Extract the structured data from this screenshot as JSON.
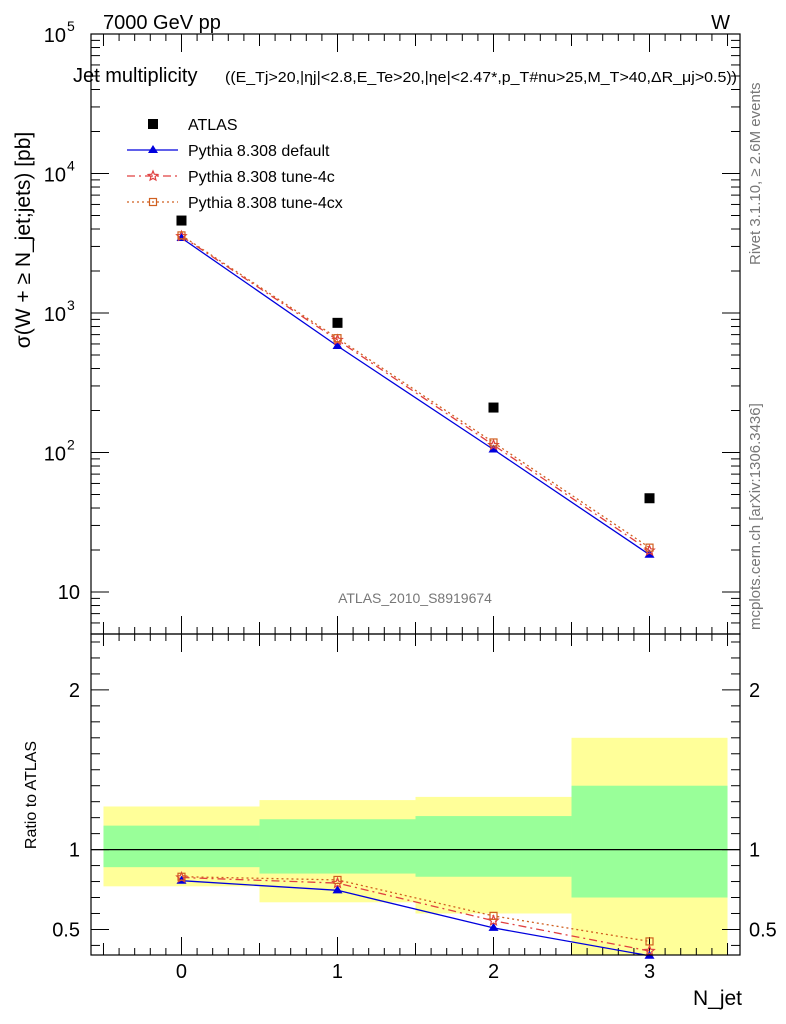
{
  "header": {
    "energy_label": "7000 GeV pp",
    "process_label": "W"
  },
  "side_labels": {
    "rivet": "Rivet 3.1.10, ≥ 2.6M events",
    "mcplots": "mcplots.cern.ch [arXiv:1306.3436]"
  },
  "watermark": "ATLAS_2010_S8919674",
  "colors": {
    "atlas": "#000000",
    "default": "#0000dd",
    "tune4c": "#e04040",
    "tune4cx": "#d06020",
    "band_outer": "#ffff99",
    "band_inner": "#99ff99"
  },
  "chart_data": [
    {
      "type": "scatter",
      "panel": "main",
      "title": "Jet multiplicity ((E_Tj>20,|η_j|<2.8,E_Te>20,|η_e|<2.47*,p_T^#nu>25,M_T>40,ΔR_μj>0.5))",
      "title_main": "Jet multiplicity",
      "title_cuts": "((E_Tj>20,|ηj|<2.8,E_Te>20,|ηe|<2.47*,p_T#nu>25,M_T>40,ΔR_μj>0.5))",
      "ylabel": "σ(W + ≥ N_jet;jets) [pb]",
      "y_scale": "log",
      "ylim": [
        5,
        100000
      ],
      "xlim": [
        -0.58,
        3.58
      ],
      "y_ticks": [
        "10",
        "10^2",
        "10^3",
        "10^4",
        "10^5"
      ],
      "legend_position": "top-left",
      "x": [
        0,
        1,
        2,
        3
      ],
      "series": [
        {
          "name": "ATLAS",
          "marker": "square",
          "values": [
            4600,
            850,
            210,
            47
          ]
        },
        {
          "name": "Pythia 8.308 default",
          "marker": "triangle",
          "line": "solid",
          "values": [
            3450,
            580,
            105,
            18.5
          ]
        },
        {
          "name": "Pythia 8.308 tune-4c",
          "marker": "star",
          "line": "dashdot",
          "values": [
            3550,
            640,
            113,
            19.8
          ]
        },
        {
          "name": "Pythia 8.308 tune-4cx",
          "marker": "open-square",
          "line": "dotted",
          "values": [
            3600,
            660,
            118,
            20.8
          ]
        }
      ]
    },
    {
      "type": "line",
      "panel": "ratio",
      "ylabel": "Ratio to ATLAS",
      "xlabel": "N_jet",
      "ylim": [
        0.34,
        2.35
      ],
      "xlim": [
        -0.58,
        3.58
      ],
      "x_ticks": [
        "0",
        "1",
        "2",
        "3"
      ],
      "y_ticks": [
        "0.5",
        "1",
        "2"
      ],
      "reference_line": 1,
      "bands": [
        {
          "x_low": -0.5,
          "x_high": 0.5,
          "outer": [
            0.77,
            1.27
          ],
          "inner": [
            0.89,
            1.15
          ]
        },
        {
          "x_low": 0.5,
          "x_high": 1.5,
          "outer": [
            0.67,
            1.31
          ],
          "inner": [
            0.85,
            1.19
          ]
        },
        {
          "x_low": 1.5,
          "x_high": 2.5,
          "outer": [
            0.6,
            1.33
          ],
          "inner": [
            0.83,
            1.21
          ]
        },
        {
          "x_low": 2.5,
          "x_high": 3.5,
          "outer": [
            0.34,
            1.7
          ],
          "inner": [
            0.7,
            1.4
          ]
        }
      ],
      "x": [
        0,
        1,
        2,
        3
      ],
      "series": [
        {
          "name": "Pythia 8.308 default",
          "values": [
            0.805,
            0.745,
            0.51,
            0.335
          ]
        },
        {
          "name": "Pythia 8.308 tune-4c",
          "values": [
            0.825,
            0.79,
            0.555,
            0.365
          ]
        },
        {
          "name": "Pythia 8.308 tune-4cx",
          "values": [
            0.83,
            0.81,
            0.585,
            0.425
          ]
        }
      ]
    }
  ]
}
